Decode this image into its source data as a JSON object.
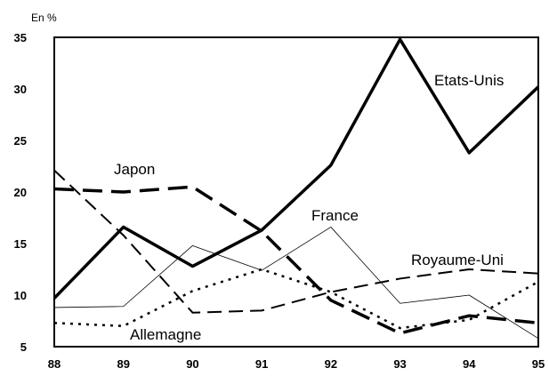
{
  "chart_data": {
    "type": "line",
    "title": "",
    "unit_label": "En %",
    "xlabel": "",
    "ylabel": "",
    "categories": [
      "88",
      "89",
      "90",
      "91",
      "92",
      "93",
      "94",
      "95"
    ],
    "y_ticks": [
      "5",
      "10",
      "15",
      "20",
      "25",
      "30",
      "35"
    ],
    "ylim": [
      5,
      35
    ],
    "grid": false,
    "legend": "inline labels",
    "series": [
      {
        "name": "Etats-Unis",
        "style": "thick-solid",
        "values": [
          9.7,
          16.6,
          12.8,
          16.3,
          22.6,
          34.8,
          23.8,
          30.2
        ]
      },
      {
        "name": "Japon",
        "style": "thick-dashed",
        "values": [
          20.3,
          20.0,
          20.5,
          16.2,
          9.5,
          6.3,
          8.0,
          7.3
        ]
      },
      {
        "name": "France",
        "style": "thin-solid",
        "values": [
          8.8,
          8.9,
          14.8,
          12.4,
          16.6,
          9.2,
          10.0,
          5.8
        ]
      },
      {
        "name": "Royaume-Uni",
        "style": "medium-dashed",
        "values": [
          22.1,
          15.8,
          8.3,
          8.5,
          10.3,
          11.6,
          12.5,
          12.1
        ]
      },
      {
        "name": "Allemagne",
        "style": "dotted",
        "values": [
          7.3,
          7.0,
          10.4,
          12.5,
          10.3,
          6.8,
          7.6,
          11.3
        ]
      }
    ]
  }
}
